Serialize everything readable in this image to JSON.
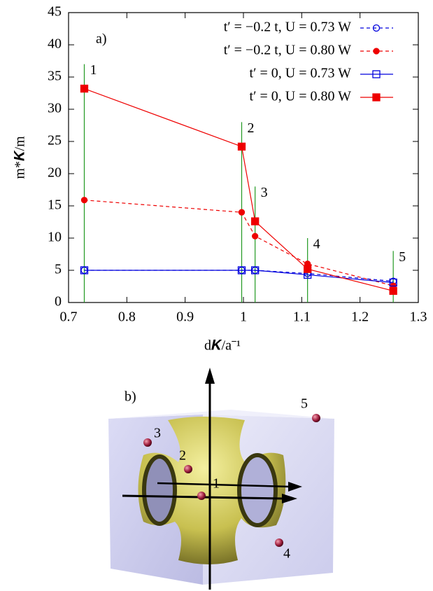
{
  "chart_data": {
    "type": "line",
    "panel_label": "a)",
    "xlabel": "d𝑲/a⁻¹",
    "ylabel": "m*𝑲/m",
    "xlim": [
      0.7,
      1.3
    ],
    "xticks": [
      0.7,
      0.8,
      0.9,
      1,
      1.1,
      1.2,
      1.3
    ],
    "ylim": [
      0,
      45
    ],
    "yticks": [
      0,
      5,
      10,
      15,
      20,
      25,
      30,
      35,
      40,
      45
    ],
    "x": [
      0.727,
      0.997,
      1.02,
      1.11,
      1.257
    ],
    "legend": "top-right",
    "series": [
      {
        "name": "t′ = −0.2 t, U = 0.73 W",
        "color": "#0000dd",
        "dash": true,
        "marker": "circle",
        "filled": false,
        "values": [
          5,
          5,
          5,
          4.5,
          3.3
        ]
      },
      {
        "name": "t′ = −0.2 t, U = 0.80 W",
        "color": "#ee0000",
        "dash": true,
        "marker": "circle",
        "filled": true,
        "values": [
          15.9,
          14,
          10.3,
          6,
          2.6
        ]
      },
      {
        "name": "t′ = 0, U = 0.73 W",
        "color": "#0000dd",
        "dash": false,
        "marker": "square",
        "filled": false,
        "values": [
          5,
          5,
          5,
          4.3,
          3.1
        ]
      },
      {
        "name": "t′ = 0, U = 0.80 W",
        "color": "#ee0000",
        "dash": false,
        "marker": "square",
        "filled": true,
        "values": [
          33.2,
          24.2,
          12.6,
          5.2,
          1.8
        ]
      }
    ],
    "markers": [
      {
        "x": 0.727,
        "top": 37,
        "label": "1"
      },
      {
        "x": 0.997,
        "top": 28,
        "label": "2"
      },
      {
        "x": 1.02,
        "top": 18,
        "label": "3"
      },
      {
        "x": 1.11,
        "top": 10,
        "label": "4"
      },
      {
        "x": 1.257,
        "top": 8,
        "label": "5"
      }
    ],
    "marker_color": "#229922"
  },
  "panel_b": {
    "label": "b)",
    "points": [
      "1",
      "2",
      "3",
      "4",
      "5"
    ]
  }
}
